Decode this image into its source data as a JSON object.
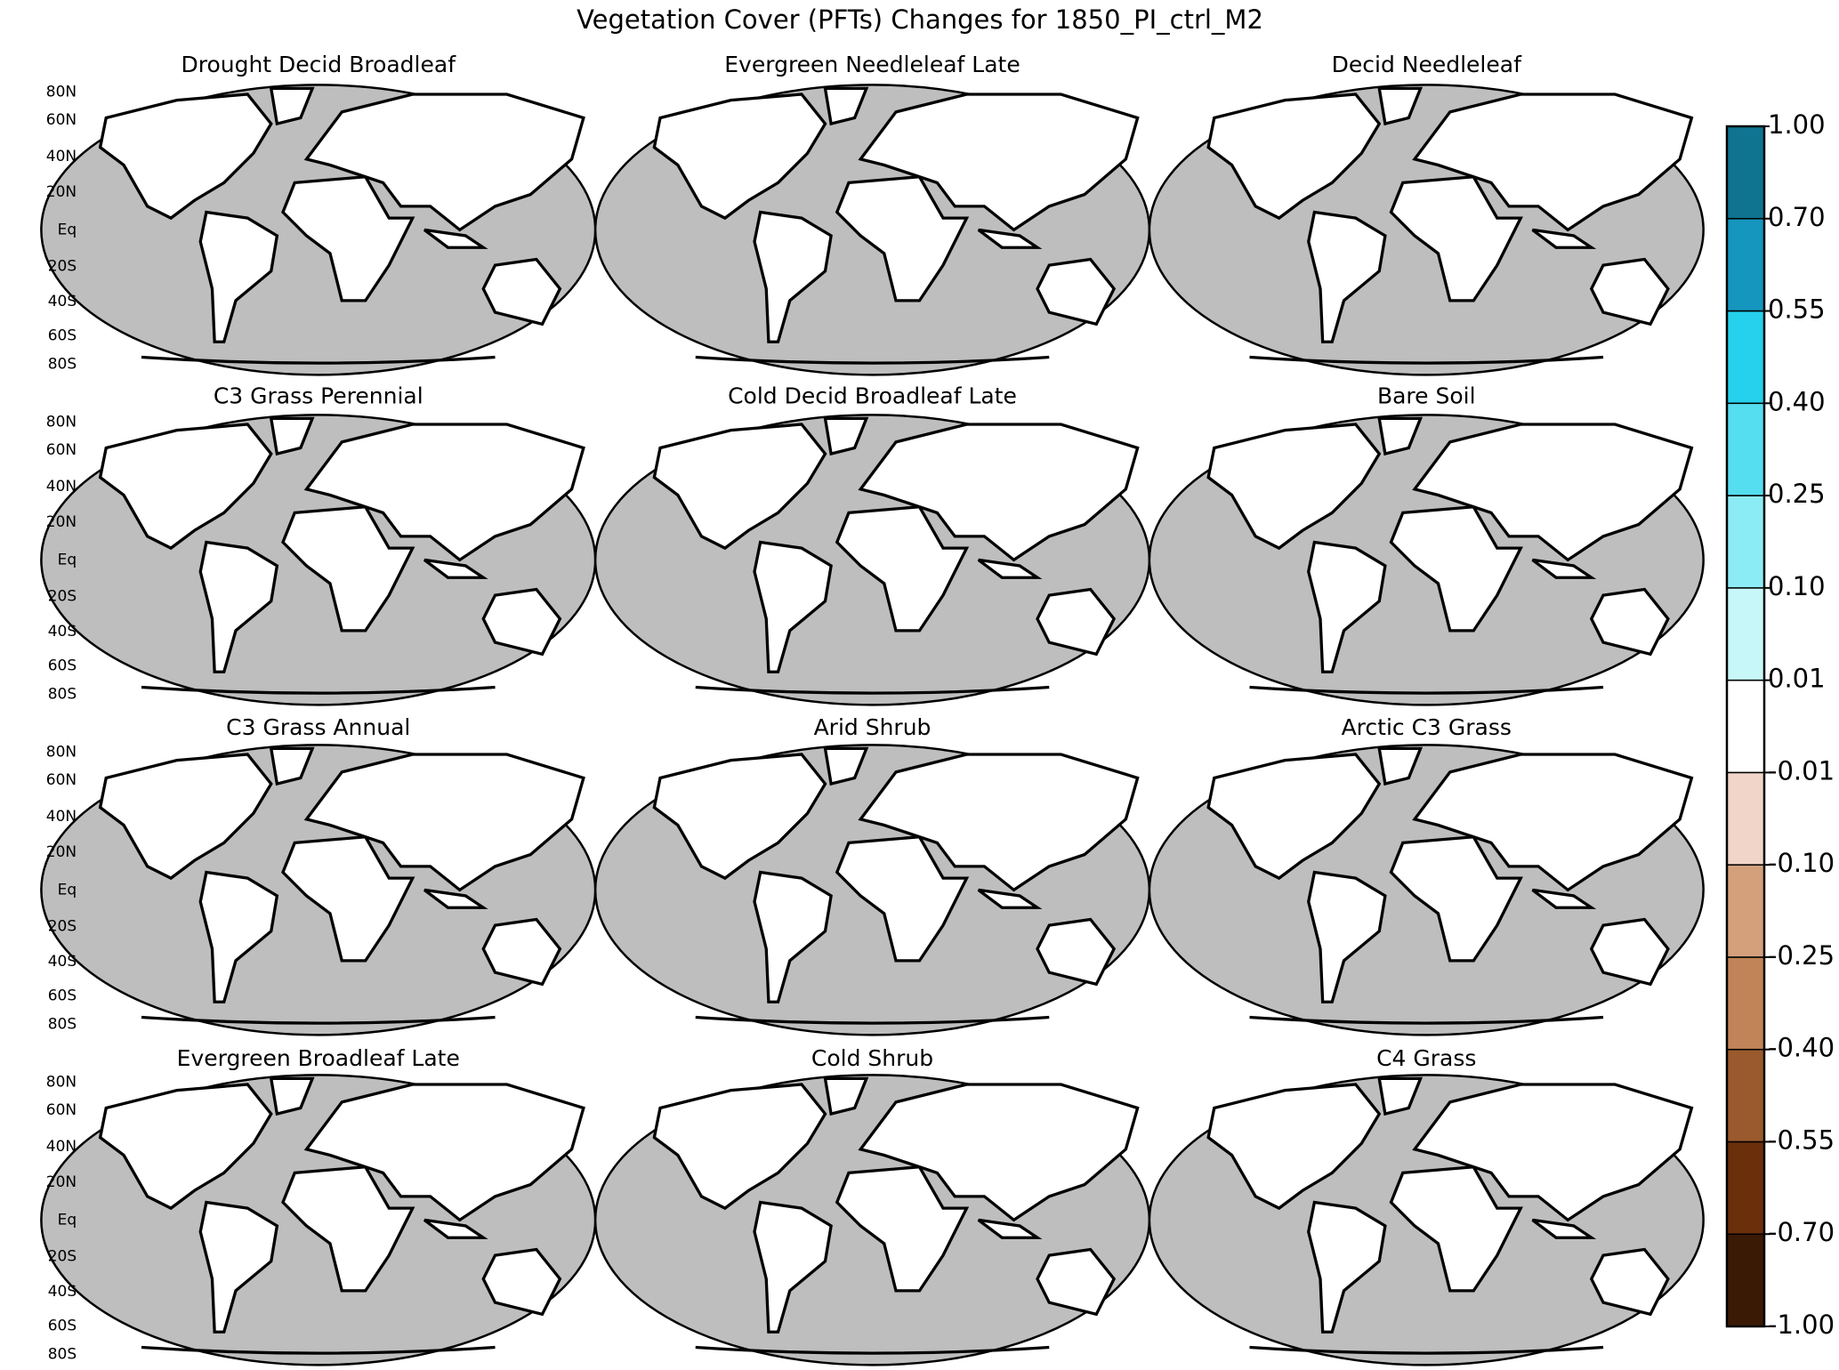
{
  "title": "Vegetation Cover (PFTs) Changes for 1850_PI_ctrl_M2",
  "panels": [
    {
      "title": "Drought Decid Broadleaf"
    },
    {
      "title": "Evergreen Needleleaf Late"
    },
    {
      "title": "Decid Needleleaf"
    },
    {
      "title": "C3 Grass Perennial"
    },
    {
      "title": "Cold Decid Broadleaf Late"
    },
    {
      "title": "Bare Soil"
    },
    {
      "title": "C3 Grass Annual"
    },
    {
      "title": "Arid Shrub"
    },
    {
      "title": "Arctic C3 Grass"
    },
    {
      "title": "Evergreen Broadleaf Late"
    },
    {
      "title": "Cold Shrub"
    },
    {
      "title": "C4 Grass"
    }
  ],
  "lat_labels": [
    "80N",
    "60N",
    "40N",
    "20N",
    "Eq",
    "20S",
    "40S",
    "60S",
    "80S"
  ],
  "colorbar": {
    "levels": [
      {
        "value": -1,
        "label": "-1.00"
      },
      {
        "value": -0.7,
        "label": "-0.70"
      },
      {
        "value": -0.55,
        "label": "-0.55"
      },
      {
        "value": -0.4,
        "label": "-0.40"
      },
      {
        "value": -0.25,
        "label": "-0.25"
      },
      {
        "value": -0.1,
        "label": "-0.10"
      },
      {
        "value": -0.01,
        "label": "-0.01"
      },
      {
        "value": 0.01,
        "label": "0.01"
      },
      {
        "value": 0.1,
        "label": "0.10"
      },
      {
        "value": 0.25,
        "label": "0.25"
      },
      {
        "value": 0.4,
        "label": "0.40"
      },
      {
        "value": 0.55,
        "label": "0.55"
      },
      {
        "value": 0.7,
        "label": "0.70"
      },
      {
        "value": 1,
        "label": "1.00"
      }
    ],
    "colors": [
      "#3a1a05",
      "#6b2f0c",
      "#9a5a2e",
      "#c08458",
      "#d4a07c",
      "#f0d5c8",
      "#ffffff",
      "#c8f7fa",
      "#8cecf5",
      "#55def0",
      "#25d1ec",
      "#1496be",
      "#0e7490"
    ]
  }
}
